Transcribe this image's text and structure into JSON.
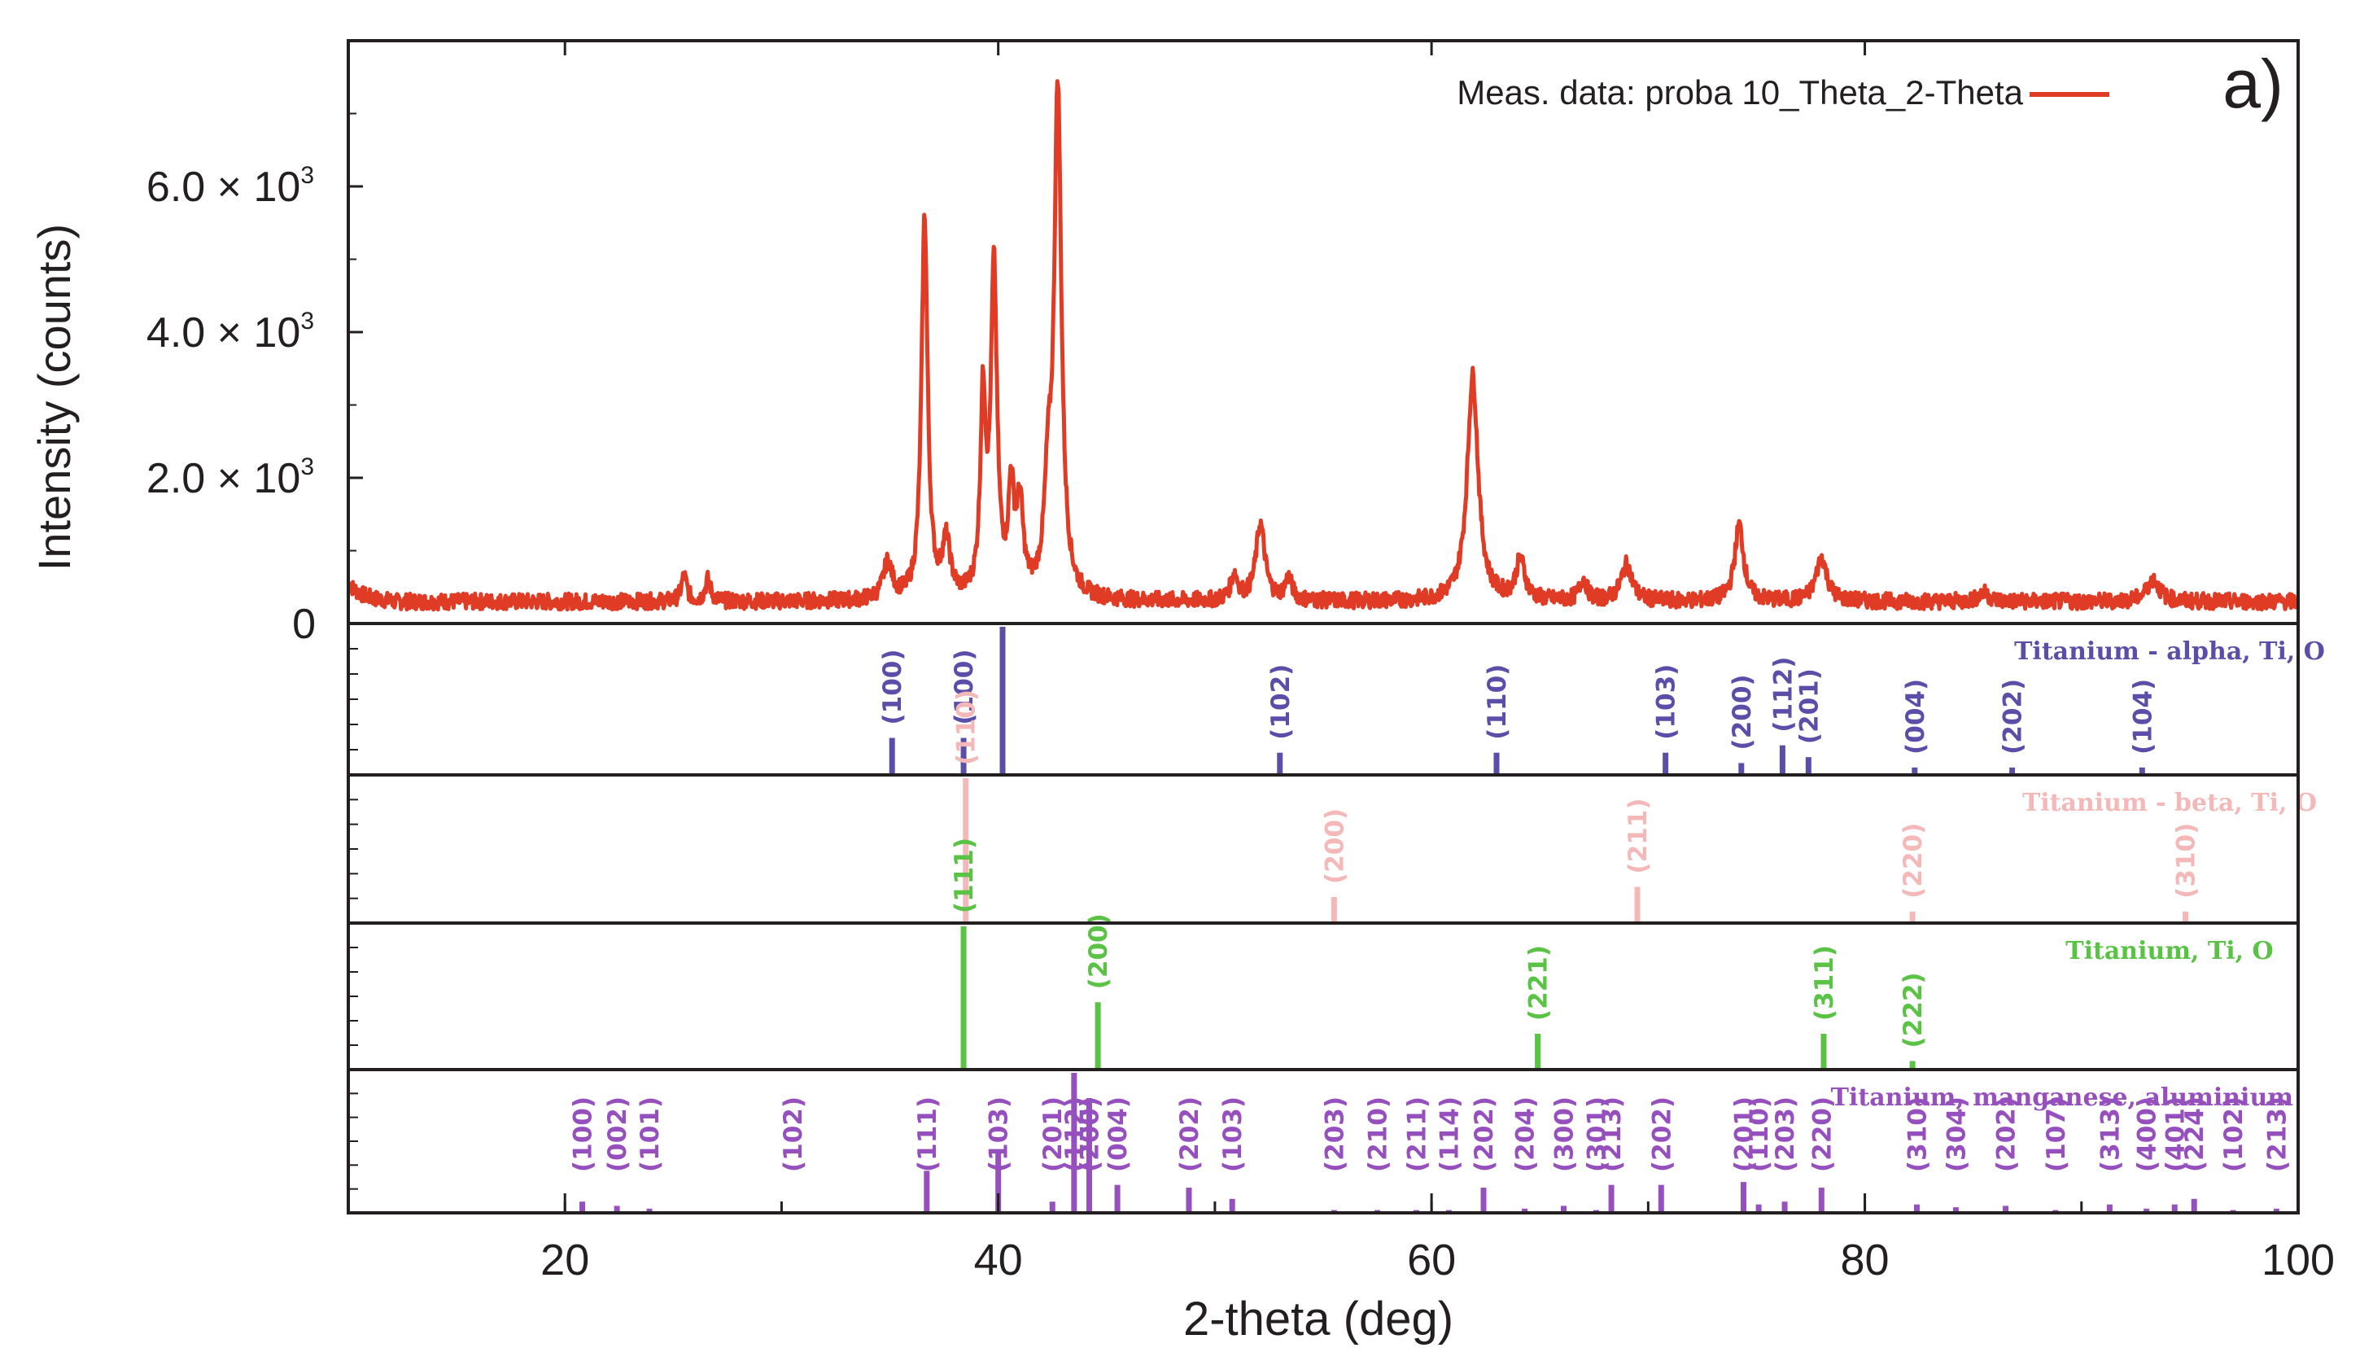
{
  "chart_data": {
    "type": "line",
    "panel_label": "a)",
    "legend_label": "Meas. data: proba 10_Theta_2-Theta",
    "xlabel": "2-theta (deg)",
    "ylabel": "Intensity (counts)",
    "xlim": [
      10,
      100
    ],
    "ylim": [
      0,
      8000
    ],
    "x_ticks": [
      20,
      40,
      60,
      80,
      100
    ],
    "y_ticks": [
      {
        "value": 0,
        "mantissa": "0",
        "exp": ""
      },
      {
        "value": 2000,
        "mantissa": "2.0 × 10",
        "exp": "3"
      },
      {
        "value": 4000,
        "mantissa": "4.0 × 10",
        "exp": "3"
      },
      {
        "value": 6000,
        "mantissa": "6.0 × 10",
        "exp": "3"
      }
    ],
    "series_color": "#e03b24",
    "baseline": 300,
    "measured_peaks": [
      {
        "x": 25.5,
        "y": 650,
        "w": 0.15
      },
      {
        "x": 26.6,
        "y": 600,
        "w": 0.15
      },
      {
        "x": 34.9,
        "y": 800,
        "w": 0.25
      },
      {
        "x": 36.6,
        "y": 5550,
        "w": 0.17
      },
      {
        "x": 37.6,
        "y": 1050,
        "w": 0.22
      },
      {
        "x": 39.3,
        "y": 2950,
        "w": 0.15
      },
      {
        "x": 39.8,
        "y": 4750,
        "w": 0.17
      },
      {
        "x": 40.6,
        "y": 1700,
        "w": 0.15
      },
      {
        "x": 41.0,
        "y": 1500,
        "w": 0.18
      },
      {
        "x": 42.3,
        "y": 1600,
        "w": 0.2
      },
      {
        "x": 42.75,
        "y": 7250,
        "w": 0.2
      },
      {
        "x": 50.9,
        "y": 650,
        "w": 0.2
      },
      {
        "x": 52.1,
        "y": 1350,
        "w": 0.25
      },
      {
        "x": 53.4,
        "y": 600,
        "w": 0.2
      },
      {
        "x": 61.9,
        "y": 3400,
        "w": 0.3
      },
      {
        "x": 64.1,
        "y": 850,
        "w": 0.25
      },
      {
        "x": 67.0,
        "y": 600,
        "w": 0.2
      },
      {
        "x": 69.0,
        "y": 800,
        "w": 0.3
      },
      {
        "x": 74.2,
        "y": 1350,
        "w": 0.25
      },
      {
        "x": 78.0,
        "y": 900,
        "w": 0.3
      },
      {
        "x": 85.5,
        "y": 420,
        "w": 0.3
      },
      {
        "x": 93.3,
        "y": 600,
        "w": 0.35
      }
    ],
    "reference_panels": [
      {
        "name": "Titanium - alpha, Ti, O",
        "color": "#5b4ea8",
        "peaks": [
          {
            "x": 35.1,
            "h": 0.25,
            "label": "(100)"
          },
          {
            "x": 38.4,
            "h": 0.25,
            "label": "(100)"
          },
          {
            "x": 40.2,
            "h": 1.0,
            "label": ""
          },
          {
            "x": 53.0,
            "h": 0.15,
            "label": "(102)"
          },
          {
            "x": 63.0,
            "h": 0.15,
            "label": "(110)"
          },
          {
            "x": 70.8,
            "h": 0.15,
            "label": "(103)"
          },
          {
            "x": 74.3,
            "h": 0.08,
            "label": "(200)"
          },
          {
            "x": 76.2,
            "h": 0.2,
            "label": "(112)"
          },
          {
            "x": 77.4,
            "h": 0.12,
            "label": "(201)"
          },
          {
            "x": 82.3,
            "h": 0.05,
            "label": "(004)"
          },
          {
            "x": 86.8,
            "h": 0.05,
            "label": "(202)"
          },
          {
            "x": 92.8,
            "h": 0.05,
            "label": "(104)"
          }
        ]
      },
      {
        "name": "Titanium - beta, Ti, O",
        "color": "#f4b8b8",
        "peaks": [
          {
            "x": 38.5,
            "h": 1.0,
            "label": "(110)"
          },
          {
            "x": 55.5,
            "h": 0.18,
            "label": "(200)"
          },
          {
            "x": 69.5,
            "h": 0.25,
            "label": "(211)"
          },
          {
            "x": 82.2,
            "h": 0.08,
            "label": "(220)"
          },
          {
            "x": 94.8,
            "h": 0.08,
            "label": "(310)"
          }
        ]
      },
      {
        "name": "Titanium, Ti, O",
        "color": "#5ac345",
        "peaks": [
          {
            "x": 38.4,
            "h": 1.0,
            "label": "(111)"
          },
          {
            "x": 44.6,
            "h": 0.47,
            "label": "(200)"
          },
          {
            "x": 64.9,
            "h": 0.25,
            "label": "(221)"
          },
          {
            "x": 78.1,
            "h": 0.25,
            "label": "(311)"
          },
          {
            "x": 82.2,
            "h": 0.06,
            "label": "(222)"
          }
        ]
      },
      {
        "name": "Titanium, manganese, aluminium",
        "color": "#9650be",
        "peaks": [
          {
            "x": 20.8,
            "h": 0.08,
            "label": "(100)"
          },
          {
            "x": 22.4,
            "h": 0.05,
            "label": "(002)"
          },
          {
            "x": 23.9,
            "h": 0.03,
            "label": "(101)"
          },
          {
            "x": 30.5,
            "h": 0.0,
            "label": "(102)"
          },
          {
            "x": 36.7,
            "h": 0.3,
            "label": "(111)"
          },
          {
            "x": 40.0,
            "h": 0.45,
            "label": "(103)"
          },
          {
            "x": 42.5,
            "h": 0.08,
            "label": "(201)"
          },
          {
            "x": 43.5,
            "h": 1.0,
            "label": "(112)"
          },
          {
            "x": 44.2,
            "h": 0.82,
            "label": "(200)"
          },
          {
            "x": 45.5,
            "h": 0.2,
            "label": "(004)"
          },
          {
            "x": 48.8,
            "h": 0.18,
            "label": "(202)"
          },
          {
            "x": 50.8,
            "h": 0.1,
            "label": "(103)"
          },
          {
            "x": 55.5,
            "h": 0.02,
            "label": "(203)"
          },
          {
            "x": 57.5,
            "h": 0.02,
            "label": "(210)"
          },
          {
            "x": 59.3,
            "h": 0.02,
            "label": "(211)"
          },
          {
            "x": 60.8,
            "h": 0.02,
            "label": "(114)"
          },
          {
            "x": 62.4,
            "h": 0.18,
            "label": "(202)"
          },
          {
            "x": 64.3,
            "h": 0.03,
            "label": "(204)"
          },
          {
            "x": 66.1,
            "h": 0.05,
            "label": "(300)"
          },
          {
            "x": 67.6,
            "h": 0.02,
            "label": "(301)"
          },
          {
            "x": 68.3,
            "h": 0.2,
            "label": "(213)"
          },
          {
            "x": 70.6,
            "h": 0.2,
            "label": "(202)"
          },
          {
            "x": 74.4,
            "h": 0.22,
            "label": "(201)"
          },
          {
            "x": 75.1,
            "h": 0.06,
            "label": "(110)"
          },
          {
            "x": 76.3,
            "h": 0.08,
            "label": "(203)"
          },
          {
            "x": 78.0,
            "h": 0.18,
            "label": "(220)"
          },
          {
            "x": 82.4,
            "h": 0.06,
            "label": "(310)"
          },
          {
            "x": 84.2,
            "h": 0.04,
            "label": "(304)"
          },
          {
            "x": 86.5,
            "h": 0.05,
            "label": "(202)"
          },
          {
            "x": 88.8,
            "h": 0.02,
            "label": "(107)"
          },
          {
            "x": 91.3,
            "h": 0.06,
            "label": "(313)"
          },
          {
            "x": 93.0,
            "h": 0.03,
            "label": "(400)"
          },
          {
            "x": 94.3,
            "h": 0.06,
            "label": "(401)"
          },
          {
            "x": 95.2,
            "h": 0.1,
            "label": "(224)"
          },
          {
            "x": 97.0,
            "h": 0.02,
            "label": "(102)"
          },
          {
            "x": 99.0,
            "h": 0.03,
            "label": "(213)"
          }
        ]
      }
    ]
  }
}
